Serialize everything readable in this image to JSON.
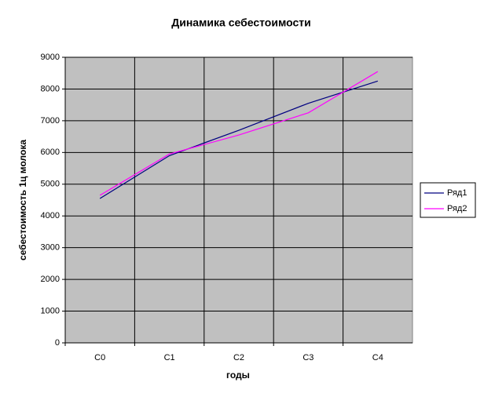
{
  "chart_data": {
    "type": "line",
    "title": "Динамика себестоимости",
    "x_label": "годы",
    "y_label": "себестоимость 1ц молока",
    "categories": [
      "C0",
      "C1",
      "C2",
      "C3",
      "C4"
    ],
    "series": [
      {
        "name": "Ряд1",
        "color": "#000080",
        "values": [
          4550,
          5900,
          6700,
          7550,
          8250
        ]
      },
      {
        "name": "Ряд2",
        "color": "#ff00ff",
        "values": [
          4650,
          5950,
          6550,
          7250,
          8550
        ]
      }
    ],
    "ylim": [
      0,
      9000
    ],
    "yticks": [
      0,
      1000,
      2000,
      3000,
      4000,
      5000,
      6000,
      7000,
      8000,
      9000
    ],
    "grid": true,
    "legend": "right",
    "plot_background": "#c0c0c0"
  }
}
